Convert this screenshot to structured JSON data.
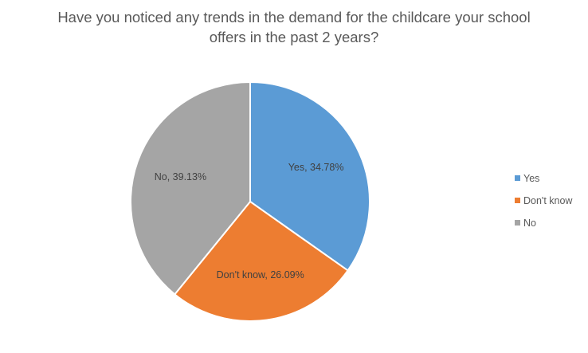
{
  "chart_data": {
    "type": "pie",
    "title_lines": [
      "Have you noticed any trends in the demand for the childcare your school",
      "offers in the past 2 years?"
    ],
    "slices": [
      {
        "label": "Yes",
        "value": 34.78,
        "data_label": "Yes, 34.78%",
        "color": "#5B9BD5"
      },
      {
        "label": "Don't know",
        "value": 26.09,
        "data_label": "Don't know, 26.09%",
        "color": "#ED7D31"
      },
      {
        "label": "No",
        "value": 39.13,
        "data_label": "No, 39.13%",
        "color": "#A5A5A5"
      }
    ],
    "start_angle": "12 o'clock",
    "direction": "clockwise",
    "legend_position": "right"
  }
}
